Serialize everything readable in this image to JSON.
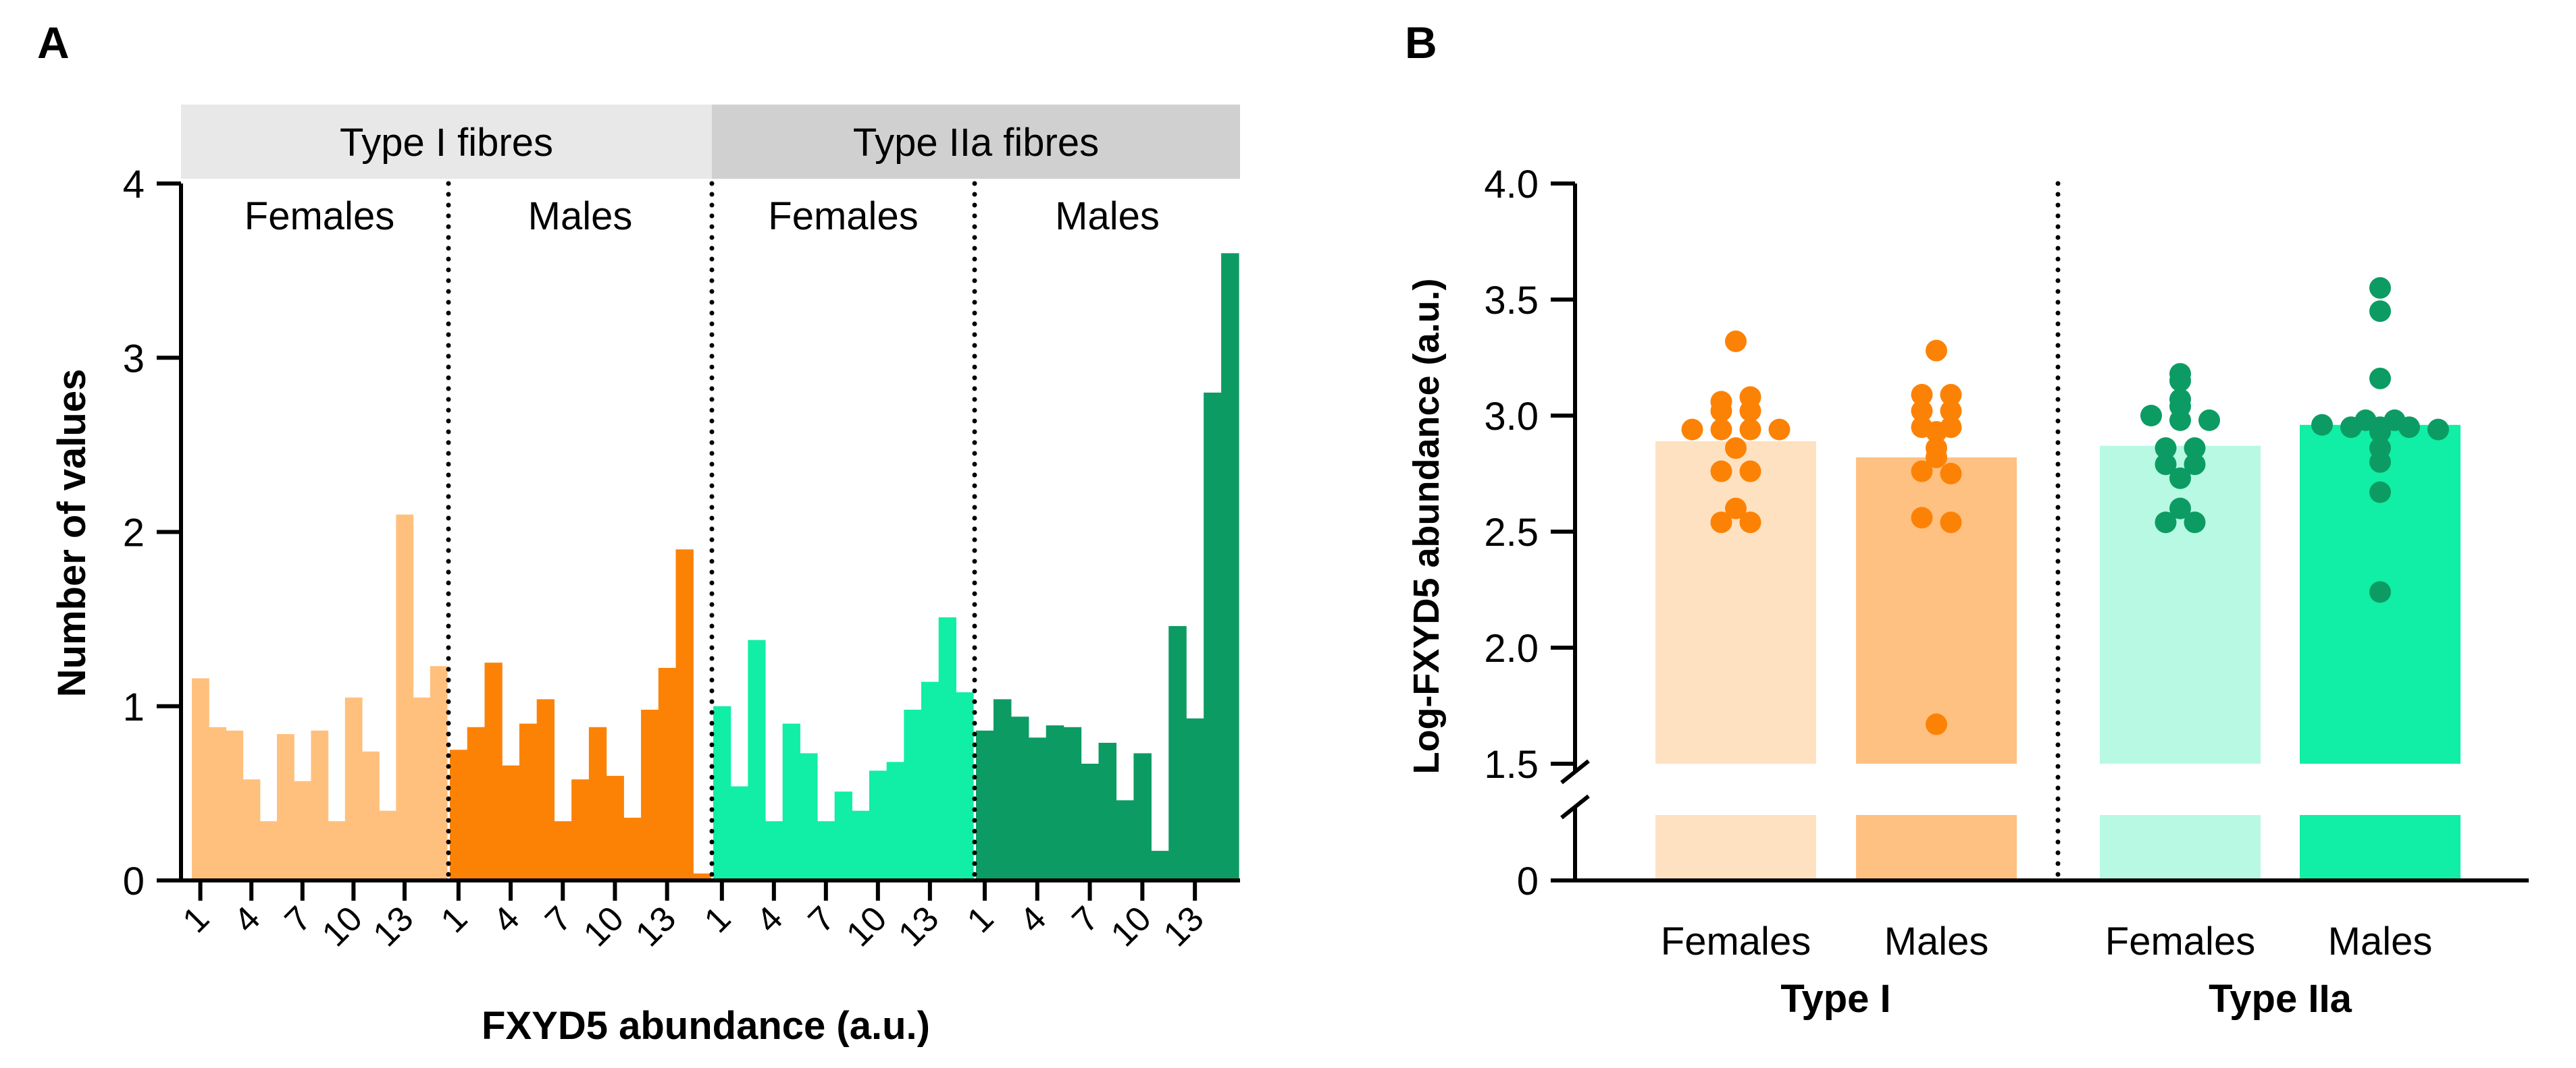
{
  "panel_labels": {
    "a": "A",
    "b": "B"
  },
  "chart_data": [
    {
      "type": "bar",
      "subtype": "histogram",
      "title": "",
      "xlabel": "FXYD5 abundance (a.u.)",
      "ylabel": "Number of values",
      "ylim": [
        0,
        4
      ],
      "yticks": [
        0,
        1,
        2,
        3,
        4
      ],
      "grid": false,
      "xtick_labels": [
        "1",
        "4",
        "7",
        "10",
        "13"
      ],
      "xtick_bins": [
        1,
        4,
        7,
        10,
        13
      ],
      "header_groups": [
        {
          "label": "Type I fibres",
          "panels": [
            0,
            1
          ],
          "color": "#e8e8e8"
        },
        {
          "label": "Type IIa fibres",
          "panels": [
            2,
            3
          ],
          "color": "#d0d0d0"
        }
      ],
      "panels": [
        {
          "label": "Females",
          "fibre": "Type I",
          "color": "#ffc07d",
          "values": [
            1.16,
            0.88,
            0.86,
            0.58,
            0.34,
            0.84,
            0.57,
            0.86,
            0.34,
            1.05,
            0.74,
            0.4,
            2.1,
            1.05,
            1.23
          ]
        },
        {
          "label": "Males",
          "fibre": "Type I",
          "color": "#fc8206",
          "values": [
            0.75,
            0.88,
            1.25,
            0.66,
            0.9,
            1.04,
            0.34,
            0.58,
            0.88,
            0.6,
            0.36,
            0.98,
            1.22,
            1.9,
            0.04
          ]
        },
        {
          "label": "Females",
          "fibre": "Type IIa",
          "color": "#11eea5",
          "values": [
            1.0,
            0.54,
            1.38,
            0.34,
            0.9,
            0.73,
            0.34,
            0.51,
            0.4,
            0.63,
            0.68,
            0.98,
            1.14,
            1.51,
            1.08
          ]
        },
        {
          "label": "Males",
          "fibre": "Type IIa",
          "color": "#0c9c63",
          "values": [
            0.86,
            1.04,
            0.94,
            0.82,
            0.89,
            0.88,
            0.67,
            0.79,
            0.46,
            0.73,
            0.17,
            1.46,
            0.93,
            2.8,
            3.6
          ]
        }
      ]
    },
    {
      "type": "bar",
      "subtype": "bar_with_points",
      "title": "",
      "ylabel": "Log-FXYD5 abundance (a.u.)",
      "ylim": [
        1.5,
        4.0
      ],
      "yticks": [
        "1.5",
        "2.0",
        "2.5",
        "3.0",
        "3.5",
        "4.0"
      ],
      "y_axis_break": true,
      "y_bottom_tick": "0",
      "grid": false,
      "group_labels": [
        "Type I",
        "Type IIa"
      ],
      "series": [
        {
          "name": "Females",
          "group": "Type I",
          "mean": 2.89,
          "bar_color": "#fee1c1",
          "point_color": "#fc8206",
          "points": [
            3.32,
            3.02,
            3.02,
            3.06,
            3.08,
            2.94,
            2.94,
            2.94,
            2.94,
            2.86,
            2.76,
            2.76,
            2.6,
            2.54,
            2.54
          ]
        },
        {
          "name": "Males",
          "group": "Type I",
          "mean": 2.82,
          "bar_color": "#fec182",
          "point_color": "#fc8206",
          "points": [
            3.28,
            3.09,
            3.09,
            3.02,
            3.02,
            2.95,
            2.95,
            2.93,
            2.86,
            2.82,
            2.76,
            2.75,
            2.56,
            2.54,
            1.67
          ]
        },
        {
          "name": "Females",
          "group": "Type IIa",
          "mean": 2.87,
          "bar_color": "#b8f9e3",
          "point_color": "#0c9c63",
          "points": [
            3.18,
            3.15,
            3.07,
            3.04,
            3.0,
            2.98,
            2.98,
            2.86,
            2.86,
            2.79,
            2.79,
            2.73,
            2.6,
            2.54,
            2.54
          ]
        },
        {
          "name": "Males",
          "group": "Type IIa",
          "mean": 2.96,
          "bar_color": "#11eea5",
          "point_color": "#0c9c63",
          "points": [
            3.55,
            3.45,
            3.16,
            2.98,
            2.98,
            2.96,
            2.95,
            2.95,
            2.95,
            2.94,
            2.93,
            2.86,
            2.8,
            2.67,
            2.24
          ]
        }
      ]
    }
  ]
}
